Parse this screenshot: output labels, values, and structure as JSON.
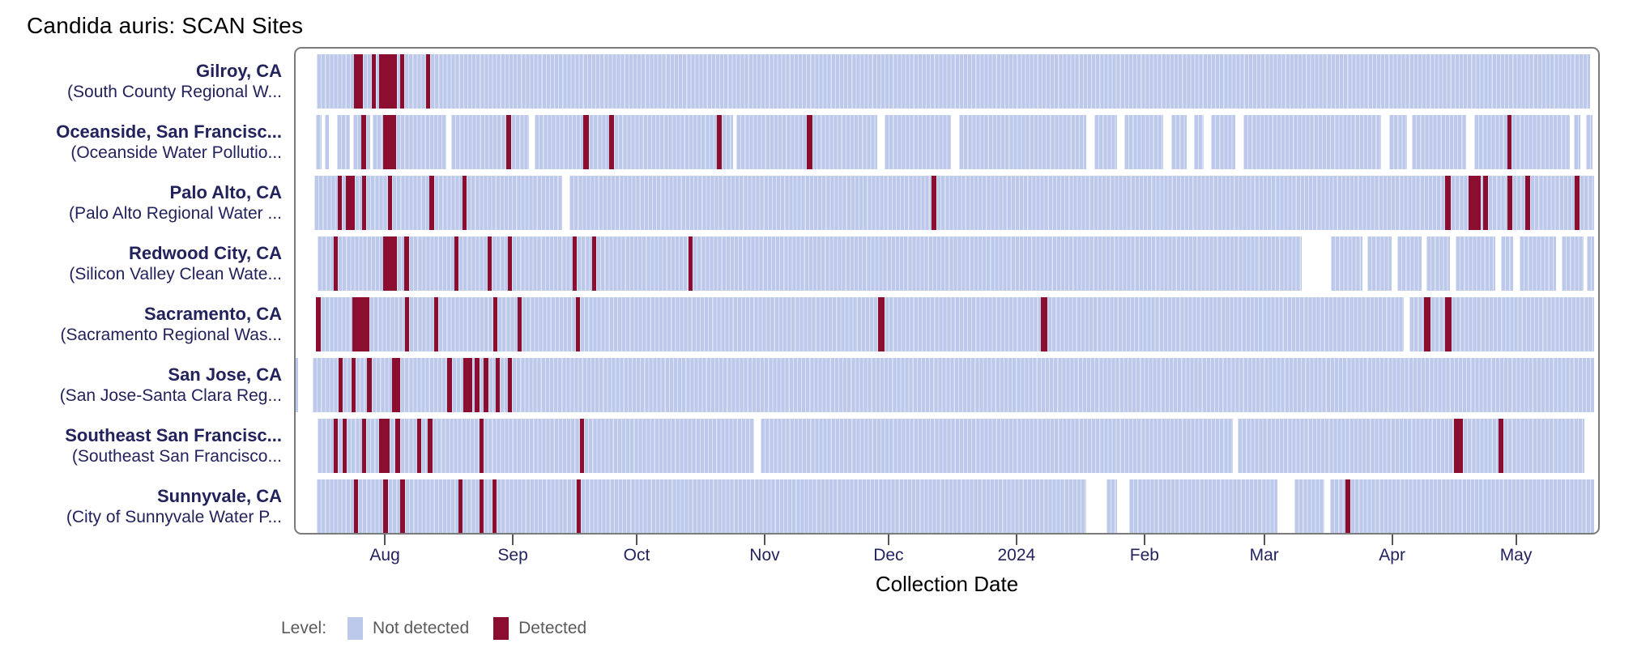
{
  "title": "Candida auris: SCAN Sites",
  "x_axis_label": "Collection Date",
  "legend": {
    "title": "Level:",
    "items": [
      {
        "label": "Not detected",
        "key": "nd",
        "color": "#bdc9ea"
      },
      {
        "label": "Detected",
        "key": "d",
        "color": "#8b0e31"
      }
    ]
  },
  "colors": {
    "not_detected": "#bdc9ea",
    "detected": "#8b0e31",
    "frame_border": "#7b7b7b",
    "site_label_text": "#22225c",
    "tick_label_text": "#23235f",
    "legend_text": "#5a5a5a",
    "background": "#ffffff"
  },
  "chart_data": {
    "type": "heatmap",
    "title": "Candida auris: SCAN Sites",
    "xlabel": "Collection Date",
    "x_unit": "days from left edge of plot (daily sample tiles)",
    "x_domain_days": [
      0,
      316.3
    ],
    "x_ticks": [
      {
        "label": "Aug",
        "day": 22
      },
      {
        "label": "Sep",
        "day": 53
      },
      {
        "label": "Oct",
        "day": 83
      },
      {
        "label": "Nov",
        "day": 114
      },
      {
        "label": "Dec",
        "day": 144
      },
      {
        "label": "2024",
        "day": 175
      },
      {
        "label": "Feb",
        "day": 206
      },
      {
        "label": "Mar",
        "day": 235
      },
      {
        "label": "Apr",
        "day": 266
      },
      {
        "label": "May",
        "day": 296
      }
    ],
    "states": {
      "nd": "Not detected",
      "d": "Detected",
      "gap": "no sample"
    },
    "sites": [
      {
        "city": "Gilroy, CA",
        "facility": "(South County Regional W...",
        "segments": [
          [
            5.5,
            14.5,
            "nd"
          ],
          [
            14.5,
            16.6,
            "d"
          ],
          [
            16.6,
            18.8,
            "nd"
          ],
          [
            18.8,
            19.8,
            "d"
          ],
          [
            19.8,
            20.7,
            "nd"
          ],
          [
            20.7,
            24.9,
            "d"
          ],
          [
            24.9,
            25.7,
            "nd"
          ],
          [
            25.7,
            26.7,
            "d"
          ],
          [
            26.7,
            32,
            "nd"
          ],
          [
            32,
            33,
            "d"
          ],
          [
            33,
            314,
            "nd"
          ]
        ]
      },
      {
        "city": "Oceanside, San Francisc...",
        "facility": "(Oceanside Water Pollutio...",
        "segments": [
          [
            5.3,
            6.7,
            "nd"
          ],
          [
            7.5,
            8.4,
            "nd"
          ],
          [
            10.4,
            13.5,
            "nd"
          ],
          [
            14.3,
            16.3,
            "nd"
          ],
          [
            16.3,
            17.5,
            "d"
          ],
          [
            17.5,
            18.4,
            "nd"
          ],
          [
            19,
            21.6,
            "nd"
          ],
          [
            21.6,
            24.7,
            "d"
          ],
          [
            24.7,
            36.9,
            "nd"
          ],
          [
            38.1,
            51.4,
            "nd"
          ],
          [
            51.4,
            52.5,
            "d"
          ],
          [
            52.5,
            56.9,
            "nd"
          ],
          [
            58.3,
            70,
            "nd"
          ],
          [
            70,
            71.5,
            "d"
          ],
          [
            71.5,
            76.3,
            "nd"
          ],
          [
            76.3,
            77.5,
            "d"
          ],
          [
            77.5,
            102.4,
            "nd"
          ],
          [
            102.4,
            103.6,
            "d"
          ],
          [
            103.6,
            106.3,
            "nd"
          ],
          [
            107.2,
            124.2,
            "nd"
          ],
          [
            124.2,
            125.5,
            "d"
          ],
          [
            125.5,
            141.3,
            "nd"
          ],
          [
            143,
            159.1,
            "nd"
          ],
          [
            161.1,
            191.9,
            "nd"
          ],
          [
            193.8,
            199.3,
            "nd"
          ],
          [
            201.1,
            210.5,
            "nd"
          ],
          [
            212.5,
            216.2,
            "nd"
          ],
          [
            218,
            220.3,
            "nd"
          ],
          [
            222.1,
            228,
            "nd"
          ],
          [
            230,
            263.3,
            "nd"
          ],
          [
            265.2,
            269.7,
            "nd"
          ],
          [
            270.7,
            283.9,
            "nd"
          ],
          [
            285.8,
            293.9,
            "nd"
          ],
          [
            293.9,
            294.9,
            "d"
          ],
          [
            294.9,
            309,
            "nd"
          ],
          [
            310,
            311.5,
            "nd"
          ],
          [
            312.9,
            314.5,
            "nd"
          ]
        ]
      },
      {
        "city": "Palo Alto, CA",
        "facility": "(Palo Alto Regional Water ...",
        "segments": [
          [
            5,
            10.6,
            "nd"
          ],
          [
            10.6,
            11.6,
            "d"
          ],
          [
            11.6,
            12.6,
            "nd"
          ],
          [
            12.6,
            14.7,
            "d"
          ],
          [
            14.7,
            16.5,
            "nd"
          ],
          [
            16.5,
            17.5,
            "d"
          ],
          [
            17.5,
            22.8,
            "nd"
          ],
          [
            22.8,
            23.8,
            "d"
          ],
          [
            23.8,
            32.8,
            "nd"
          ],
          [
            32.8,
            33.9,
            "d"
          ],
          [
            33.9,
            40.8,
            "nd"
          ],
          [
            40.8,
            41.8,
            "d"
          ],
          [
            41.8,
            64.9,
            "nd"
          ],
          [
            66.7,
            154.4,
            "nd"
          ],
          [
            154.4,
            155.6,
            "d"
          ],
          [
            155.6,
            278.8,
            "nd"
          ],
          [
            278.8,
            280.1,
            "d"
          ],
          [
            280.1,
            284.5,
            "nd"
          ],
          [
            284.5,
            287.5,
            "d"
          ],
          [
            287.5,
            288.1,
            "nd"
          ],
          [
            288.1,
            289.3,
            "d"
          ],
          [
            289.3,
            293.9,
            "nd"
          ],
          [
            293.9,
            295.1,
            "d"
          ],
          [
            295.1,
            298.2,
            "nd"
          ],
          [
            298.2,
            299.4,
            "d"
          ],
          [
            299.4,
            310.2,
            "nd"
          ],
          [
            310.2,
            311.4,
            "d"
          ],
          [
            311.4,
            315,
            "nd"
          ]
        ]
      },
      {
        "city": "Redwood City, CA",
        "facility": "(Silicon Valley Clean Wate...",
        "segments": [
          [
            5.7,
            9.6,
            "nd"
          ],
          [
            9.6,
            10.6,
            "d"
          ],
          [
            10.6,
            21.6,
            "nd"
          ],
          [
            21.6,
            24.9,
            "d"
          ],
          [
            24.9,
            26.7,
            "nd"
          ],
          [
            26.7,
            27.9,
            "d"
          ],
          [
            27.9,
            38.8,
            "nd"
          ],
          [
            38.8,
            39.8,
            "d"
          ],
          [
            39.8,
            46.9,
            "nd"
          ],
          [
            46.9,
            47.9,
            "d"
          ],
          [
            47.9,
            51.8,
            "nd"
          ],
          [
            51.8,
            52.8,
            "d"
          ],
          [
            52.8,
            67.5,
            "nd"
          ],
          [
            67.5,
            68.5,
            "d"
          ],
          [
            68.5,
            72.2,
            "nd"
          ],
          [
            72.2,
            73.2,
            "d"
          ],
          [
            73.2,
            95.5,
            "nd"
          ],
          [
            95.5,
            96.6,
            "d"
          ],
          [
            96.6,
            244,
            "nd"
          ],
          [
            251.1,
            258.8,
            "nd"
          ],
          [
            260,
            265.8,
            "nd"
          ],
          [
            267.2,
            273.1,
            "nd"
          ],
          [
            274.3,
            280.1,
            "nd"
          ],
          [
            281.3,
            291,
            "nd"
          ],
          [
            292.3,
            295.4,
            "nd"
          ],
          [
            296.8,
            305.8,
            "nd"
          ],
          [
            307,
            312.3,
            "nd"
          ],
          [
            313.1,
            315,
            "nd"
          ]
        ]
      },
      {
        "city": "Sacramento, CA",
        "facility": "(Sacramento Regional Was...",
        "segments": [
          [
            5.3,
            6.5,
            "d"
          ],
          [
            6.5,
            14.1,
            "nd"
          ],
          [
            14.1,
            18.2,
            "d"
          ],
          [
            18.2,
            26.9,
            "nd"
          ],
          [
            26.9,
            27.9,
            "d"
          ],
          [
            27.9,
            33.9,
            "nd"
          ],
          [
            33.9,
            34.9,
            "d"
          ],
          [
            34.9,
            48.3,
            "nd"
          ],
          [
            48.3,
            49.3,
            "d"
          ],
          [
            49.3,
            54.1,
            "nd"
          ],
          [
            54.1,
            55.1,
            "d"
          ],
          [
            55.1,
            68.3,
            "nd"
          ],
          [
            68.3,
            69.3,
            "d"
          ],
          [
            69.3,
            141.4,
            "nd"
          ],
          [
            141.4,
            143,
            "d"
          ],
          [
            143,
            180.9,
            "nd"
          ],
          [
            180.9,
            182.4,
            "d"
          ],
          [
            182.4,
            268.8,
            "nd"
          ],
          [
            270.2,
            273.7,
            "nd"
          ],
          [
            273.7,
            275.2,
            "d"
          ],
          [
            275.2,
            278.8,
            "nd"
          ],
          [
            278.8,
            280.3,
            "d"
          ],
          [
            280.3,
            315,
            "nd"
          ]
        ]
      },
      {
        "city": "San Jose, CA",
        "facility": "(San Jose-Santa Clara Reg...",
        "segments": [
          [
            0,
            1,
            "nd"
          ],
          [
            4.5,
            10.8,
            "nd"
          ],
          [
            10.8,
            11.8,
            "d"
          ],
          [
            11.8,
            13.9,
            "nd"
          ],
          [
            13.9,
            14.9,
            "d"
          ],
          [
            14.9,
            17.7,
            "nd"
          ],
          [
            17.7,
            18.8,
            "d"
          ],
          [
            18.8,
            23.7,
            "nd"
          ],
          [
            23.7,
            25.7,
            "d"
          ],
          [
            25.7,
            37.1,
            "nd"
          ],
          [
            37.1,
            38.3,
            "d"
          ],
          [
            38.3,
            41,
            "nd"
          ],
          [
            41,
            43.2,
            "d"
          ],
          [
            43.2,
            43.7,
            "nd"
          ],
          [
            43.7,
            44.9,
            "d"
          ],
          [
            44.9,
            45.9,
            "nd"
          ],
          [
            45.9,
            47.1,
            "d"
          ],
          [
            47.1,
            48.9,
            "nd"
          ],
          [
            48.9,
            49.9,
            "d"
          ],
          [
            49.9,
            51.8,
            "nd"
          ],
          [
            51.8,
            52.8,
            "d"
          ],
          [
            52.8,
            315,
            "nd"
          ]
        ]
      },
      {
        "city": "Southeast San Francisc...",
        "facility": "(Southeast San Francisco...",
        "segments": [
          [
            5.7,
            9.6,
            "nd"
          ],
          [
            9.6,
            10.6,
            "d"
          ],
          [
            10.6,
            11.8,
            "nd"
          ],
          [
            11.8,
            12.8,
            "d"
          ],
          [
            12.8,
            16.5,
            "nd"
          ],
          [
            16.5,
            17.5,
            "d"
          ],
          [
            17.5,
            20.6,
            "nd"
          ],
          [
            20.6,
            23.1,
            "d"
          ],
          [
            23.1,
            24.5,
            "nd"
          ],
          [
            24.5,
            25.7,
            "d"
          ],
          [
            25.7,
            29.8,
            "nd"
          ],
          [
            29.8,
            30.8,
            "d"
          ],
          [
            30.8,
            32.4,
            "nd"
          ],
          [
            32.4,
            33.5,
            "d"
          ],
          [
            33.5,
            44.9,
            "nd"
          ],
          [
            44.9,
            45.9,
            "d"
          ],
          [
            45.9,
            69.3,
            "nd"
          ],
          [
            69.3,
            70.3,
            "d"
          ],
          [
            70.3,
            111.4,
            "nd"
          ],
          [
            113,
            227.4,
            "nd"
          ],
          [
            228.6,
            281,
            "nd"
          ],
          [
            281,
            283.1,
            "d"
          ],
          [
            283.1,
            291.7,
            "nd"
          ],
          [
            291.7,
            292.9,
            "d"
          ],
          [
            292.9,
            312.5,
            "nd"
          ]
        ]
      },
      {
        "city": "Sunnyvale, CA",
        "facility": "(City of Sunnyvale Water P...",
        "segments": [
          [
            5.5,
            14.5,
            "nd"
          ],
          [
            14.5,
            15.5,
            "d"
          ],
          [
            15.5,
            21.6,
            "nd"
          ],
          [
            21.6,
            22.8,
            "d"
          ],
          [
            22.8,
            25.7,
            "nd"
          ],
          [
            25.7,
            26.9,
            "d"
          ],
          [
            26.9,
            39.8,
            "nd"
          ],
          [
            39.8,
            40.8,
            "d"
          ],
          [
            40.8,
            44.9,
            "nd"
          ],
          [
            44.9,
            45.9,
            "d"
          ],
          [
            45.9,
            48.1,
            "nd"
          ],
          [
            48.1,
            49.1,
            "d"
          ],
          [
            49.1,
            68.5,
            "nd"
          ],
          [
            68.5,
            69.5,
            "d"
          ],
          [
            69.5,
            191.9,
            "nd"
          ],
          [
            196.8,
            199.3,
            "nd"
          ],
          [
            202.3,
            238.2,
            "nd"
          ],
          [
            242.3,
            249.6,
            "nd"
          ],
          [
            250.9,
            254.7,
            "nd"
          ],
          [
            254.7,
            255.9,
            "d"
          ],
          [
            255.9,
            315,
            "nd"
          ]
        ]
      }
    ]
  }
}
